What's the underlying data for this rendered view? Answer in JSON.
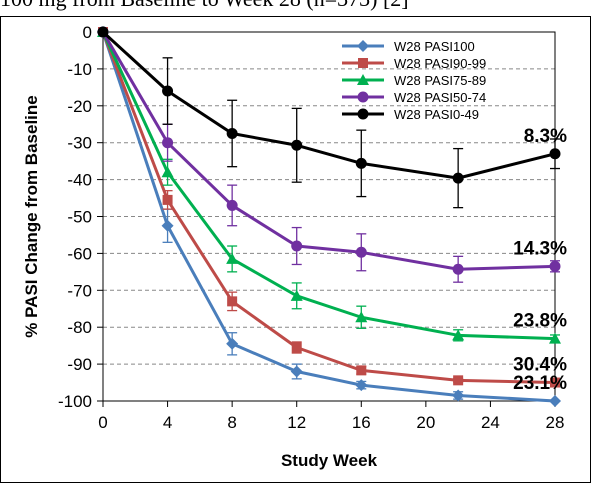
{
  "caption": "100 mg from Baseline to Week 28 (n=373) [2]",
  "chart_data": {
    "type": "line",
    "title": "",
    "xlabel": "Study Week",
    "ylabel": "% PASI Change from Baseline",
    "xlim": [
      0,
      28
    ],
    "ylim": [
      -100,
      0
    ],
    "xticks": [
      0,
      4,
      8,
      12,
      16,
      20,
      24,
      28
    ],
    "yticks": [
      0,
      -10,
      -20,
      -30,
      -40,
      -50,
      -60,
      -70,
      -80,
      -90,
      -100
    ],
    "grid": "horizontal dashed",
    "legend_position": "top-right",
    "x": [
      0,
      4,
      8,
      12,
      16,
      22,
      28
    ],
    "series": [
      {
        "name": "W28 PASI100",
        "color": "#4a7ebb",
        "marker": "diamond",
        "values": [
          0,
          -52.5,
          -84.5,
          -92,
          -95.7,
          -98.5,
          -100
        ],
        "errors": [
          0,
          4.5,
          3,
          2,
          1,
          1,
          0
        ],
        "end_label": "23.1%"
      },
      {
        "name": "W28 PASI90-99",
        "color": "#be4b48",
        "marker": "square",
        "values": [
          0,
          -45.5,
          -73,
          -85.5,
          -91.7,
          -94.4,
          -95
        ],
        "errors": [
          0,
          2.5,
          2.5,
          1.5,
          1,
          0.5,
          1
        ],
        "end_label": "30.4%"
      },
      {
        "name": "W28 PASI75-89",
        "color": "#00b050",
        "marker": "triangle",
        "values": [
          0,
          -38,
          -61.5,
          -71.5,
          -77.3,
          -82.2,
          -83.1
        ],
        "errors": [
          0,
          3.5,
          3.5,
          3.5,
          3,
          1.5,
          1
        ],
        "end_label": "23.8%"
      },
      {
        "name": "W28 PASI50-74",
        "color": "#7030a0",
        "marker": "circle",
        "values": [
          0,
          -30,
          -47,
          -58,
          -59.7,
          -64.3,
          -63.5
        ],
        "errors": [
          0,
          5,
          5.5,
          5,
          5,
          3.5,
          1.5
        ],
        "end_label": "14.3%"
      },
      {
        "name": "W28 PASI0-49",
        "color": "#000000",
        "marker": "circle",
        "values": [
          0,
          -16,
          -27.5,
          -30.7,
          -35.6,
          -39.6,
          -33
        ],
        "errors": [
          0,
          9,
          9,
          10,
          9,
          8,
          4
        ],
        "end_label": "8.3%"
      }
    ]
  }
}
